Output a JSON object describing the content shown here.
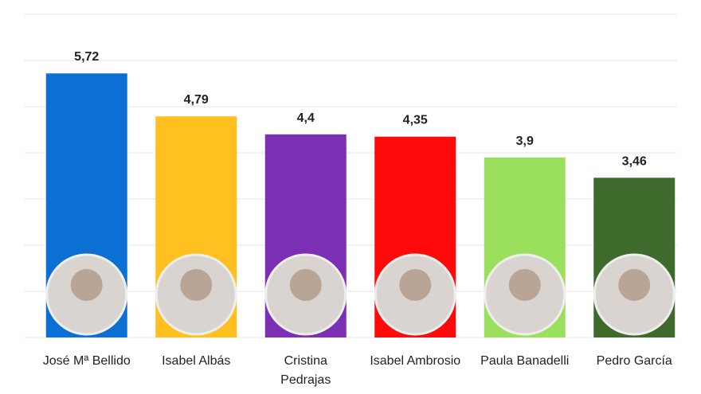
{
  "chart_data": {
    "type": "bar",
    "categories": [
      "José Mª Bellido",
      "Isabel Albás",
      "Cristina Pedrajas",
      "Isabel Ambrosio",
      "Paula Banadelli",
      "Pedro García"
    ],
    "values": [
      5.72,
      4.79,
      4.4,
      4.35,
      3.9,
      3.46
    ],
    "value_labels": [
      "5,72",
      "4,79",
      "4,4",
      "4,35",
      "3,9",
      "3,46"
    ],
    "colors": [
      "#0b6fd3",
      "#ffc020",
      "#7b2fb2",
      "#ff0a0a",
      "#9be05c",
      "#3e6a2b"
    ],
    "ylim": [
      0,
      7
    ],
    "yticks": [
      0,
      1,
      2,
      3,
      4,
      5,
      6,
      7
    ],
    "grid": true
  }
}
